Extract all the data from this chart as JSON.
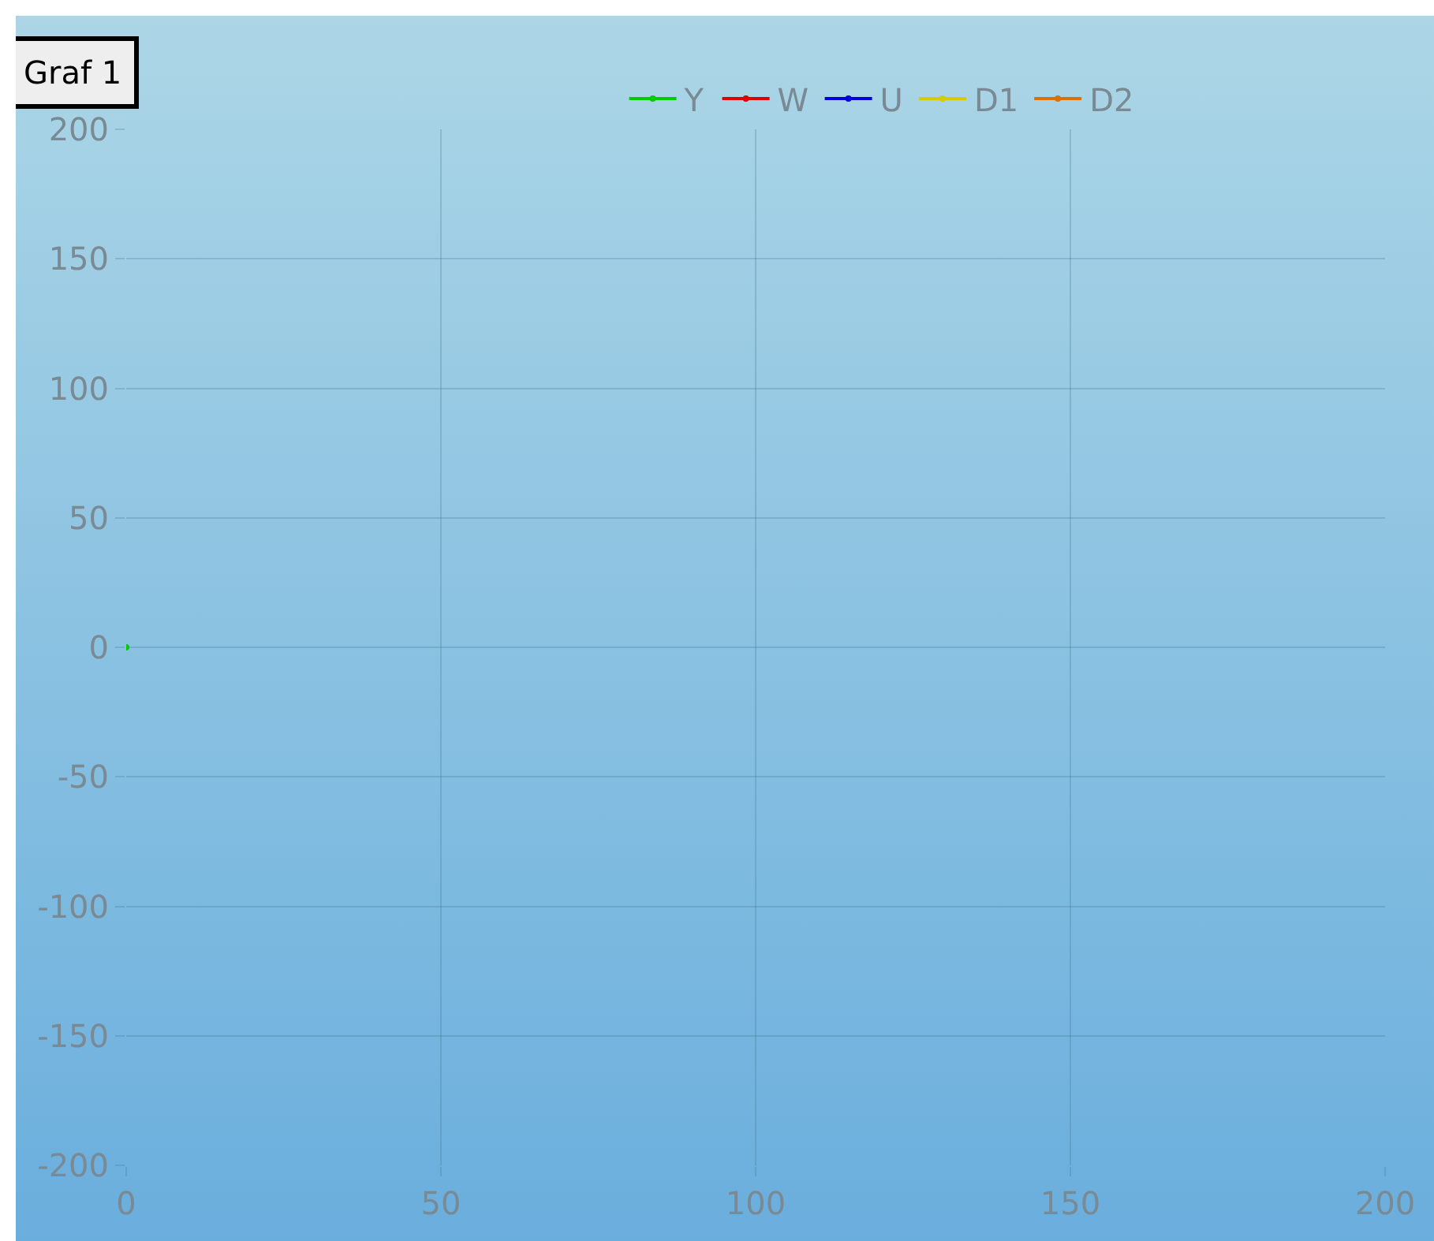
{
  "chart_data": {
    "type": "line",
    "title": "Graf 1",
    "x": [
      0
    ],
    "series": [
      {
        "name": "Y",
        "color": "#00cc00",
        "values": [
          0
        ]
      },
      {
        "name": "W",
        "color": "#dd0000",
        "values": [
          null
        ]
      },
      {
        "name": "U",
        "color": "#0000dd",
        "values": [
          null
        ]
      },
      {
        "name": "D1",
        "color": "#d4cc00",
        "values": [
          null
        ]
      },
      {
        "name": "D2",
        "color": "#dd7000",
        "values": [
          null
        ]
      }
    ],
    "xlim": [
      0,
      200
    ],
    "xticks": [
      0,
      50,
      100,
      150,
      200
    ],
    "ylim": [
      -200,
      200
    ],
    "yticks": [
      -200,
      -150,
      -100,
      -50,
      0,
      50,
      100,
      150,
      200
    ],
    "grid": true,
    "legend": "top",
    "marker": "circle"
  }
}
